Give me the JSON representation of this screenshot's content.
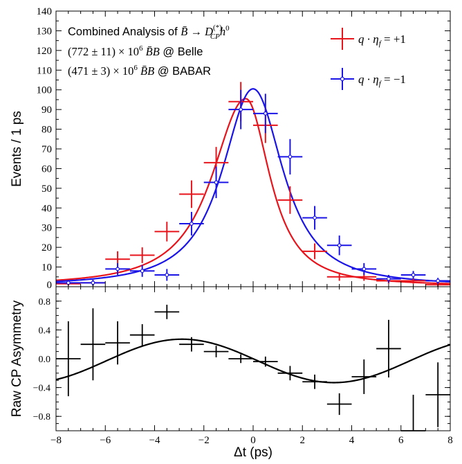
{
  "chart_data": [
    {
      "type": "scatter",
      "panel": "top",
      "ylabel": "Events / 1 ps",
      "xlim": [
        -8,
        8
      ],
      "ylim": [
        0,
        140
      ],
      "y_ticks": [
        0,
        10,
        20,
        30,
        40,
        50,
        60,
        70,
        80,
        90,
        100,
        110,
        120,
        130,
        140
      ],
      "annotations": [
        {
          "prefix": "Combined Analysis of ",
          "math": "B̄ → D",
          "sup": "(*)",
          "sub": "CP",
          "tail": "h",
          "tailsup": "0"
        },
        {
          "math": "(772 ± 11) × 10",
          "sup": "6",
          "mid": " B̄B",
          "suffix": " @ Belle"
        },
        {
          "math": "(471 ± 3) × 10",
          "sup": "6",
          "mid": " B̄B",
          "suffix": " @ BABAR"
        }
      ],
      "legend_position": "top-right",
      "series": [
        {
          "name": "q · η_f = +1",
          "legend": {
            "lhs": "q · η",
            "sub": "f",
            "rhs": " = +1"
          },
          "color": "#e8141c",
          "x": [
            -7.5,
            -6.5,
            -5.5,
            -4.5,
            -3.5,
            -2.5,
            -1.5,
            -0.5,
            0.5,
            1.5,
            2.5,
            3.5,
            4.5,
            5.5,
            6.5,
            7.5
          ],
          "y": [
            1.5,
            2,
            14,
            16,
            28,
            47,
            63,
            94,
            82,
            44,
            18,
            5,
            5,
            3,
            3,
            1
          ],
          "yerr": [
            1,
            1.5,
            4,
            4,
            5,
            7,
            8,
            10,
            9,
            7,
            4,
            2,
            2,
            1.5,
            1.5,
            1
          ],
          "curve": {
            "model": "asymmetric-peak",
            "peak_x": -0.3,
            "peak_y": 95.5
          }
        },
        {
          "name": "q · η_f = −1",
          "legend": {
            "lhs": "q · η",
            "sub": "f",
            "rhs": " = −1"
          },
          "color": "#1a14e6",
          "x": [
            -7.5,
            -6.5,
            -5.5,
            -4.5,
            -3.5,
            -2.5,
            -1.5,
            -0.5,
            0.5,
            1.5,
            2.5,
            3.5,
            4.5,
            5.5,
            6.5,
            7.5
          ],
          "y": [
            2,
            2,
            9,
            8,
            6,
            32,
            53,
            90,
            88,
            66,
            35,
            21,
            9,
            4,
            6,
            3
          ],
          "yerr": [
            1,
            1.5,
            3,
            3,
            3,
            6,
            8,
            10,
            10,
            9,
            6,
            5,
            3,
            2,
            2,
            1.5
          ],
          "curve": {
            "model": "asymmetric-peak",
            "peak_x": 0.0,
            "peak_y": 100.5
          }
        }
      ]
    },
    {
      "type": "scatter",
      "panel": "bottom",
      "xlabel": "Δt (ps)",
      "ylabel": "Raw CP Asymmetry",
      "xlim": [
        -8,
        8
      ],
      "ylim": [
        -1,
        1
      ],
      "x_ticks": [
        -8,
        -6,
        -4,
        -2,
        0,
        2,
        4,
        6,
        8
      ],
      "y_ticks": [
        -0.8,
        -0.4,
        0.0,
        0.4,
        0.8
      ],
      "y_tick_labels": [
        "−0.8",
        "−0.4",
        "0.0",
        "0.4",
        "0.8"
      ],
      "series": [
        {
          "name": "",
          "color": "#000000",
          "x": [
            -7.5,
            -6.5,
            -5.5,
            -4.5,
            -3.5,
            -2.5,
            -1.5,
            -0.5,
            0.5,
            1.5,
            2.5,
            3.5,
            4.5,
            5.5,
            6.5,
            7.5
          ],
          "y": [
            0.0,
            0.2,
            0.22,
            0.33,
            0.65,
            0.2,
            0.1,
            0.0,
            -0.04,
            -0.2,
            -0.32,
            -0.63,
            -0.25,
            0.14,
            -1.0,
            -0.5
          ],
          "yerr": [
            0.52,
            0.5,
            0.3,
            0.15,
            0.1,
            0.1,
            0.08,
            0.06,
            0.07,
            0.1,
            0.1,
            0.15,
            0.24,
            0.4,
            0.5,
            0.45
          ],
          "curve": {
            "model": "sine",
            "amplitude": 0.3,
            "frequency": 0.51,
            "offset": -0.06
          }
        }
      ]
    }
  ]
}
